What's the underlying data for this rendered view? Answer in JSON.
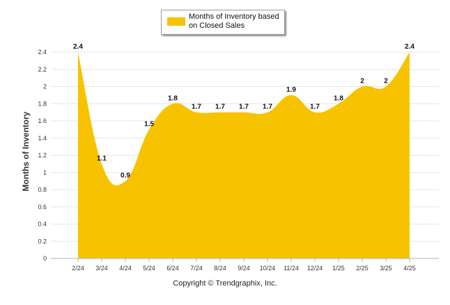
{
  "chart_data": {
    "type": "area",
    "title": "",
    "ylabel": "Months of Inventory",
    "xlabel": "",
    "categories": [
      "2/24",
      "3/24",
      "4/24",
      "5/24",
      "6/24",
      "7/24",
      "8/24",
      "9/24",
      "10/24",
      "11/24",
      "12/24",
      "1/25",
      "2/25",
      "3/25",
      "4/25"
    ],
    "series": [
      {
        "name": "Months of Inventory based on Closed Sales",
        "values": [
          2.4,
          1.1,
          0.9,
          1.5,
          1.8,
          1.7,
          1.7,
          1.7,
          1.7,
          1.9,
          1.7,
          1.8,
          2,
          2,
          2.4
        ],
        "labels": [
          "2.4",
          "1.1",
          "0.9",
          "1.5",
          "1.8",
          "1.7",
          "1.7",
          "1.7",
          "1.7",
          "1.9",
          "1.7",
          "1.8",
          "2",
          "2",
          "2.4"
        ],
        "color": "#f7c300"
      }
    ],
    "yticks": [
      "0",
      "0.2",
      "0.4",
      "0.6",
      "0.8",
      "1",
      "1.2",
      "1.4",
      "1.6",
      "1.8",
      "2",
      "2.2",
      "2.4"
    ],
    "ylim": [
      0,
      2.4
    ],
    "grid": true,
    "legend_position": "top-center"
  },
  "legend": {
    "label": "Months of Inventory based on Closed Sales"
  },
  "footer": {
    "copyright": "Copyright © Trendgraphix, Inc."
  }
}
